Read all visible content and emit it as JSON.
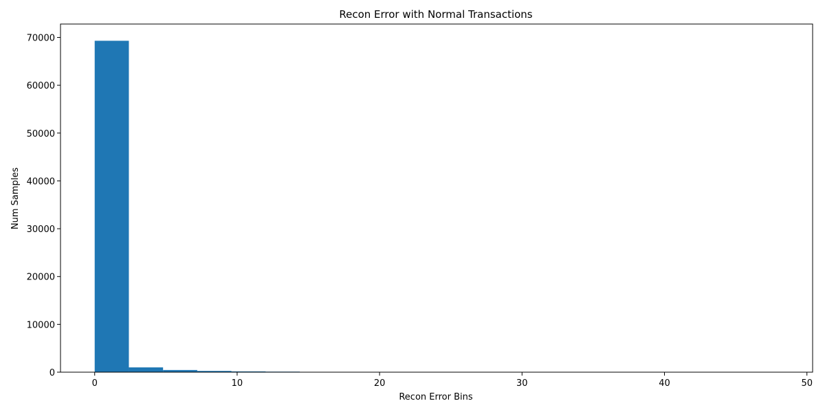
{
  "chart_data": {
    "type": "bar",
    "title": "Recon Error with Normal Transactions",
    "xlabel": "Recon Error Bins",
    "ylabel": "Num Samples",
    "bin_edges": [
      0,
      2.4,
      4.8,
      7.2,
      9.6,
      12.0,
      14.4,
      16.8,
      19.2,
      21.6,
      24.0,
      26.4,
      28.8,
      31.2,
      33.6,
      36.0,
      38.4,
      40.8,
      43.2,
      45.6,
      48.0
    ],
    "values": [
      69300,
      1000,
      450,
      260,
      160,
      110,
      70,
      40,
      20,
      10,
      8,
      5,
      4,
      3,
      2,
      2,
      1,
      1,
      1,
      1
    ],
    "xlim": [
      -2.4,
      50.4
    ],
    "ylim": [
      0,
      72800
    ],
    "xticks": [
      0,
      10,
      20,
      30,
      40,
      50
    ],
    "xtick_labels": [
      "0",
      "10",
      "20",
      "30",
      "40",
      "50"
    ],
    "yticks": [
      0,
      10000,
      20000,
      30000,
      40000,
      50000,
      60000,
      70000
    ],
    "ytick_labels": [
      "0",
      "10000",
      "20000",
      "30000",
      "40000",
      "50000",
      "60000",
      "70000"
    ],
    "grid": false,
    "legend": false,
    "bar_color": "#1f77b4"
  }
}
